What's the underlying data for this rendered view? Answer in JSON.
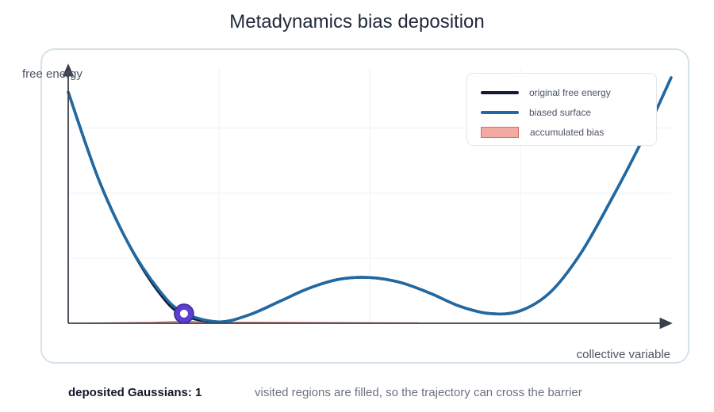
{
  "chart_data": {
    "type": "line",
    "title": "Metadynamics bias deposition",
    "xlabel": "collective variable",
    "ylabel": "free energy",
    "xlim": [
      0,
      1
    ],
    "ylim": [
      0,
      1
    ],
    "grid": true,
    "legend_position": "top-right",
    "series": [
      {
        "name": "original free energy",
        "color": "#161b33",
        "x": [
          0.0,
          0.05,
          0.1,
          0.15,
          0.19,
          0.25,
          0.3,
          0.35,
          0.4,
          0.45,
          0.5,
          0.55,
          0.6,
          0.65,
          0.7,
          0.75,
          0.8,
          0.85,
          0.9,
          0.95,
          1.0
        ],
        "y": [
          0.96,
          0.6,
          0.33,
          0.13,
          0.035,
          0.006,
          0.035,
          0.09,
          0.146,
          0.183,
          0.19,
          0.17,
          0.125,
          0.07,
          0.04,
          0.052,
          0.13,
          0.29,
          0.51,
          0.75,
          1.02
        ]
      },
      {
        "name": "biased surface",
        "color": "#1f6aa5",
        "x": [
          0.0,
          0.05,
          0.1,
          0.15,
          0.19,
          0.25,
          0.3,
          0.35,
          0.4,
          0.45,
          0.5,
          0.55,
          0.6,
          0.65,
          0.7,
          0.75,
          0.8,
          0.85,
          0.9,
          0.95,
          1.0
        ],
        "y": [
          0.96,
          0.6,
          0.33,
          0.14,
          0.045,
          0.006,
          0.035,
          0.09,
          0.146,
          0.183,
          0.19,
          0.17,
          0.125,
          0.07,
          0.04,
          0.052,
          0.13,
          0.29,
          0.51,
          0.75,
          1.02
        ]
      },
      {
        "name": "accumulated bias",
        "color": "#f3aaa3",
        "x": [
          0.0,
          0.14,
          0.19,
          0.25,
          0.58
        ],
        "y": [
          0.0,
          0.004,
          0.009,
          0.005,
          0.002
        ]
      }
    ],
    "walker": {
      "x": 0.192,
      "y": 0.04
    }
  },
  "footer": {
    "count_label": "deposited Gaussians: 1",
    "note": "visited regions are filled, so the trajectory can cross the barrier"
  },
  "colors": {
    "walker_fill": "#5b3fd1",
    "walker_center": "#ffffff",
    "grid": "#edf1f5",
    "axis": "#3a3f4b",
    "panel_border": "#d6e2ea"
  }
}
